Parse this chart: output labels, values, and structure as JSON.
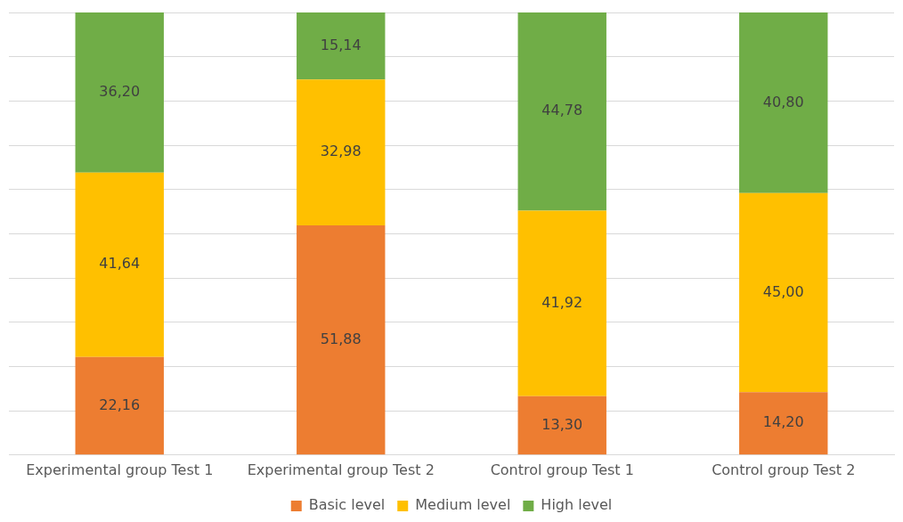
{
  "chart_data": {
    "type": "bar",
    "stacked": true,
    "categories": [
      "Experimental group Test 1",
      "Experimental group Test 2",
      "Control group Test 1",
      "Control group Test 2"
    ],
    "series": [
      {
        "name": "Basic level",
        "color": "#ed7d31",
        "values": [
          22.16,
          51.88,
          13.3,
          14.2
        ],
        "value_labels": [
          "22,16",
          "51,88",
          "13,30",
          "14,20"
        ]
      },
      {
        "name": "Medium level",
        "color": "#ffc000",
        "values": [
          41.64,
          32.98,
          41.92,
          45.0
        ],
        "value_labels": [
          "41,64",
          "32,98",
          "41,92",
          "45,00"
        ]
      },
      {
        "name": "High level",
        "color": "#70ad47",
        "values": [
          36.2,
          15.14,
          44.78,
          40.8
        ],
        "value_labels": [
          "36,20",
          "15,14",
          "44,78",
          "40,80"
        ]
      }
    ],
    "ylim": [
      0,
      100
    ],
    "yticks": [
      {
        "value": 0,
        "label": null
      },
      {
        "value": 10,
        "label": null
      },
      {
        "value": 20,
        "label": null
      },
      {
        "value": 30,
        "label": null
      },
      {
        "value": 40,
        "label": null
      },
      {
        "value": 50,
        "label": null
      },
      {
        "value": 60,
        "label": null
      },
      {
        "value": 70,
        "label": null
      },
      {
        "value": 80,
        "label": null
      },
      {
        "value": 90,
        "label": null
      },
      {
        "value": 100,
        "label": null
      }
    ],
    "grid": "y",
    "tick_labels": "x",
    "legend": "bottom"
  }
}
